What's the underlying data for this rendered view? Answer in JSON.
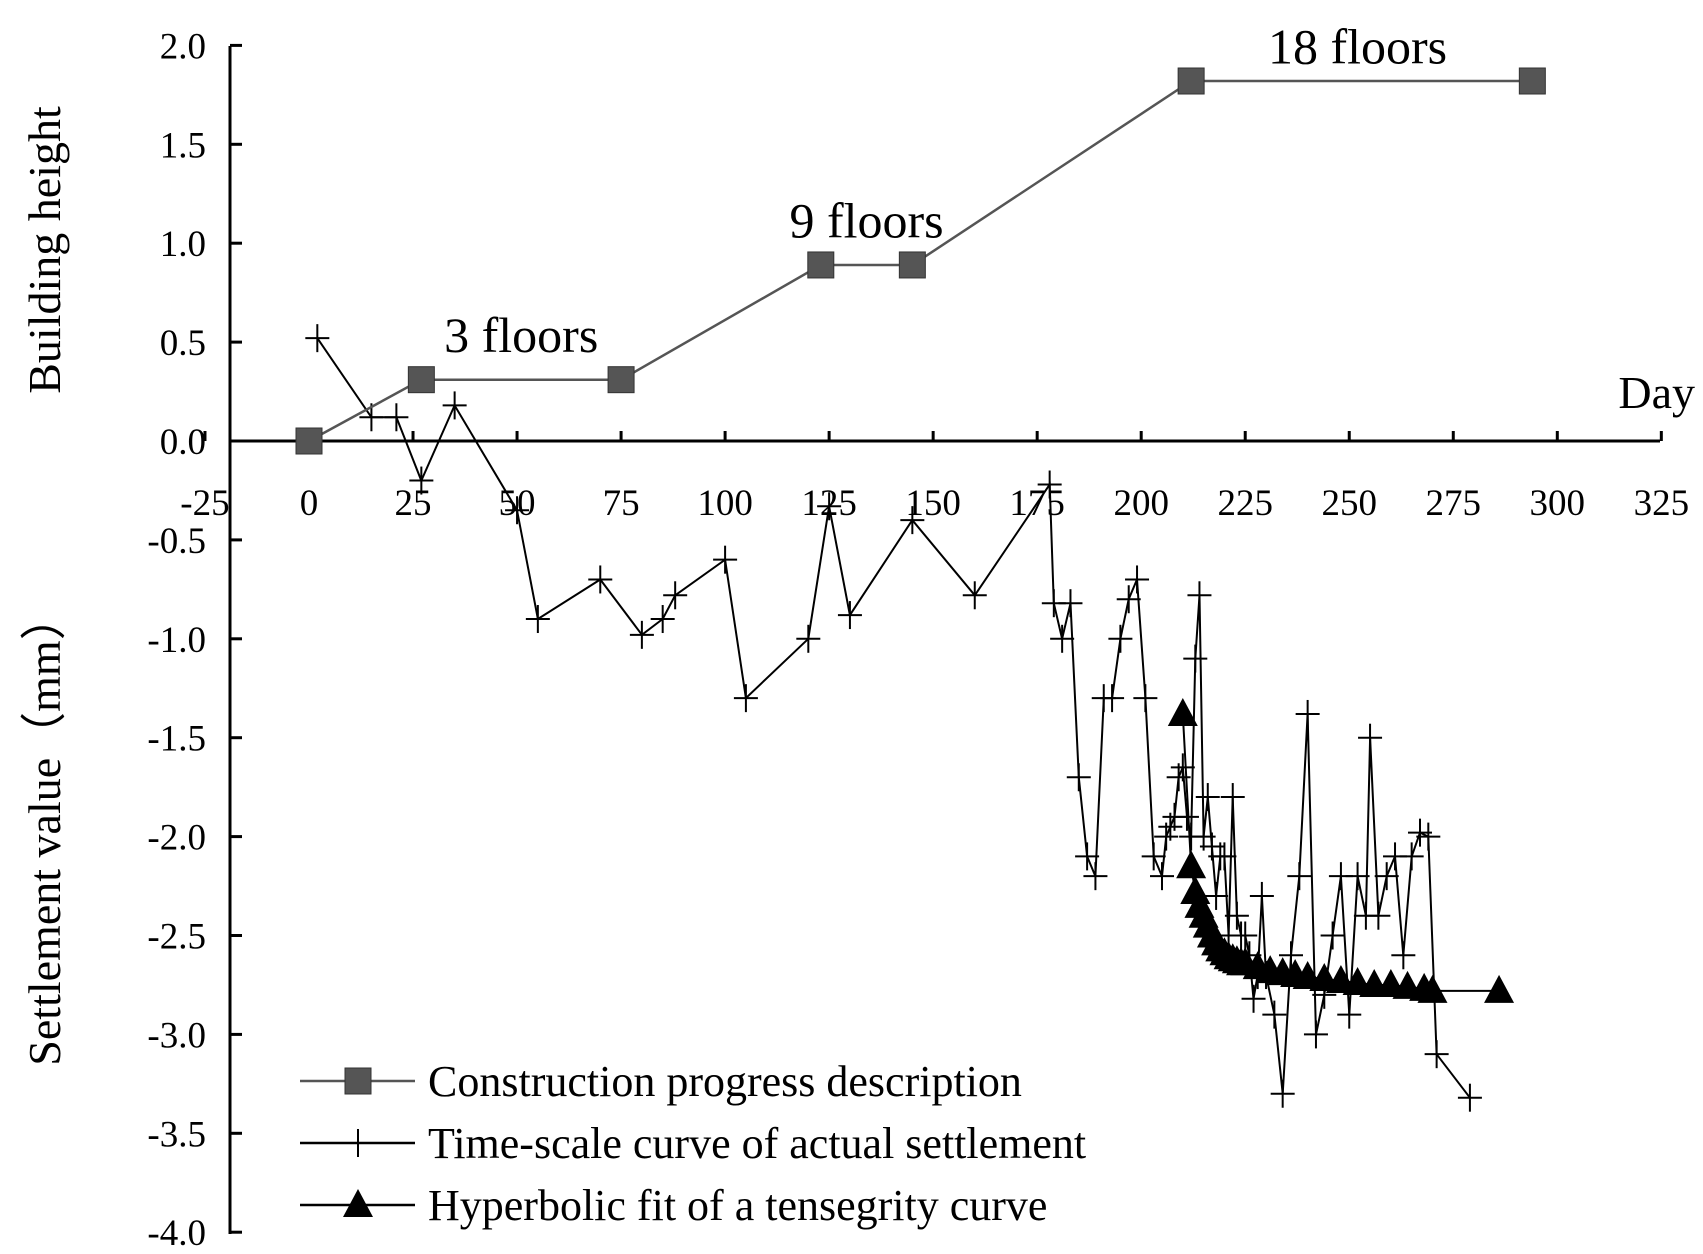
{
  "chart_data": {
    "type": "line",
    "title": "",
    "xlabel": "Day",
    "ylabel": "Building height",
    "ylabel_secondary": "Settlement value（mm）",
    "xlim": [
      -25,
      325
    ],
    "ylim": [
      -4.0,
      2.0
    ],
    "x_ticks": [
      -25,
      0,
      25,
      50,
      75,
      100,
      125,
      150,
      175,
      200,
      225,
      250,
      275,
      300,
      325
    ],
    "x_tick_labels": [
      "-25",
      "0",
      "25",
      "50",
      "75",
      "100",
      "125",
      "150",
      "175",
      "200",
      "225",
      "250",
      "275",
      "300",
      "325"
    ],
    "y_ticks": [
      2.0,
      1.5,
      1.0,
      0.5,
      0.0,
      -0.5,
      -1.0,
      -1.5,
      -2.0,
      -2.5,
      -3.0,
      -3.5,
      -4.0
    ],
    "y_tick_labels": [
      "2.0",
      "1.5",
      "1.0",
      "0.5",
      "0.0",
      "-0.5",
      "-1.0",
      "-1.5",
      "-2.0",
      "-2.5",
      "-3.0",
      "-3.5",
      "-4.0"
    ],
    "annotations": [
      {
        "text": "3 floors",
        "x": 51,
        "y": 0.5
      },
      {
        "text": "9 floors",
        "x": 134,
        "y": 1.08
      },
      {
        "text": "18 floors",
        "x": 252,
        "y": 1.96
      }
    ],
    "series": [
      {
        "name": "Construction progress description",
        "marker": "square",
        "color": "#555555",
        "x": [
          0,
          27,
          75,
          123,
          145,
          212,
          294
        ],
        "y": [
          0.0,
          0.31,
          0.31,
          0.89,
          0.89,
          1.82,
          1.82
        ]
      },
      {
        "name": "Time-scale curve of actual settlement",
        "marker": "plus",
        "color": "#000000",
        "x": [
          2,
          15,
          21,
          27,
          35,
          50,
          55,
          70,
          80,
          85,
          88,
          100,
          105,
          120,
          125,
          130,
          145,
          160,
          178,
          179,
          181,
          183,
          185,
          187,
          189,
          191,
          193,
          195,
          197,
          199,
          201,
          203,
          205,
          206,
          207,
          208,
          209,
          210,
          211,
          212,
          213,
          214,
          215,
          216,
          217,
          218,
          219,
          220,
          221,
          222,
          223,
          224,
          225,
          226,
          227,
          228,
          229,
          230,
          232,
          234,
          236,
          238,
          240,
          242,
          244,
          246,
          248,
          250,
          252,
          254,
          255,
          257,
          259,
          261,
          263,
          265,
          267,
          269,
          271,
          279
        ],
        "y": [
          0.52,
          0.12,
          0.12,
          -0.2,
          0.18,
          -0.35,
          -0.9,
          -0.7,
          -0.98,
          -0.9,
          -0.78,
          -0.6,
          -1.3,
          -1.0,
          -0.33,
          -0.88,
          -0.4,
          -0.78,
          -0.22,
          -0.82,
          -1.0,
          -0.82,
          -1.7,
          -2.1,
          -2.2,
          -1.3,
          -1.3,
          -1.0,
          -0.8,
          -0.7,
          -1.3,
          -2.1,
          -2.2,
          -2.0,
          -1.95,
          -1.9,
          -1.7,
          -1.65,
          -1.9,
          -2.0,
          -1.1,
          -0.78,
          -2.0,
          -1.8,
          -2.05,
          -2.3,
          -2.1,
          -2.1,
          -2.5,
          -1.8,
          -2.4,
          -2.5,
          -2.5,
          -2.6,
          -2.82,
          -2.7,
          -2.3,
          -2.7,
          -2.9,
          -3.3,
          -2.6,
          -2.2,
          -1.38,
          -3.0,
          -2.8,
          -2.5,
          -2.2,
          -2.9,
          -2.2,
          -2.4,
          -1.5,
          -2.4,
          -2.2,
          -2.1,
          -2.6,
          -2.1,
          -1.98,
          -2.0,
          -3.1,
          -3.32
        ]
      },
      {
        "name": "Hyperbolic fit of a tensegrity curve",
        "marker": "triangle",
        "color": "#000000",
        "x": [
          210,
          212,
          213,
          214,
          215,
          216,
          217,
          218,
          219,
          220,
          221,
          222,
          223,
          224,
          225,
          228,
          231,
          234,
          237,
          240,
          244,
          248,
          252,
          256,
          260,
          264,
          268,
          270,
          286
        ],
        "y": [
          -1.38,
          -2.15,
          -2.28,
          -2.35,
          -2.4,
          -2.45,
          -2.5,
          -2.54,
          -2.57,
          -2.59,
          -2.61,
          -2.62,
          -2.63,
          -2.64,
          -2.64,
          -2.66,
          -2.68,
          -2.69,
          -2.7,
          -2.71,
          -2.72,
          -2.73,
          -2.74,
          -2.75,
          -2.75,
          -2.76,
          -2.77,
          -2.78,
          -2.78
        ]
      }
    ]
  }
}
